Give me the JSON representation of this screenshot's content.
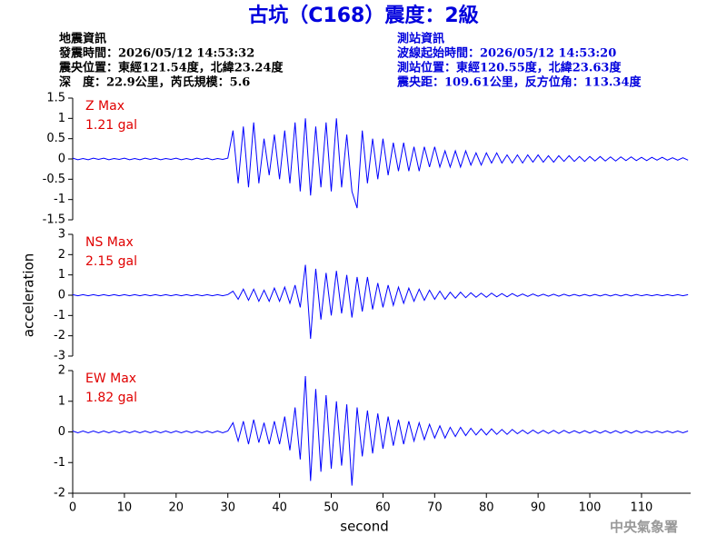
{
  "header": {
    "title": "古坑（C168）震度：2級",
    "left": [
      "地震資訊",
      "發震時間：2026/05/12 14:53:32",
      "震央位置：東經121.54度，北緯23.24度",
      "深　度：22.9公里，芮氏規模：5.6"
    ],
    "right": [
      "測站資訊",
      "波線起始時間：2026/05/12 14:53:20",
      "測站位置：東經120.55度，北緯23.63度",
      "震央距：109.61公里，反方位角：113.34度"
    ]
  },
  "chart_data": [
    {
      "type": "line",
      "annotation": "Z Max",
      "annotation_value": "1.21 gal",
      "x": [
        0,
        1,
        2,
        3,
        4,
        5,
        6,
        7,
        8,
        9,
        10,
        11,
        12,
        13,
        14,
        15,
        16,
        17,
        18,
        19,
        20,
        21,
        22,
        23,
        24,
        25,
        26,
        27,
        28,
        29,
        30,
        31,
        32,
        33,
        34,
        35,
        36,
        37,
        38,
        39,
        40,
        41,
        42,
        43,
        44,
        45,
        46,
        47,
        48,
        49,
        50,
        51,
        52,
        53,
        54,
        55,
        56,
        57,
        58,
        59,
        60,
        61,
        62,
        63,
        64,
        65,
        66,
        67,
        68,
        69,
        70,
        71,
        72,
        73,
        74,
        75,
        76,
        77,
        78,
        79,
        80,
        81,
        82,
        83,
        84,
        85,
        86,
        87,
        88,
        89,
        90,
        91,
        92,
        93,
        94,
        95,
        96,
        97,
        98,
        99,
        100,
        101,
        102,
        103,
        104,
        105,
        106,
        107,
        108,
        109,
        110,
        111,
        112,
        113,
        114,
        115,
        116,
        117,
        118,
        119
      ],
      "series": [
        {
          "color": "#0000ff",
          "values": [
            0.02,
            -0.02,
            0.01,
            -0.02,
            0.02,
            -0.01,
            0.02,
            -0.02,
            0.01,
            -0.01,
            0.02,
            -0.02,
            0.01,
            -0.02,
            0.02,
            -0.01,
            0.02,
            -0.02,
            0.01,
            -0.01,
            0.02,
            -0.02,
            0.01,
            -0.02,
            0.02,
            -0.01,
            0.02,
            -0.02,
            0.01,
            -0.01,
            0.02,
            0.7,
            -0.6,
            0.8,
            -0.7,
            0.9,
            -0.6,
            0.5,
            -0.4,
            0.6,
            -0.5,
            0.7,
            -0.6,
            0.9,
            -0.8,
            1.0,
            -0.9,
            0.8,
            -0.7,
            0.9,
            -0.8,
            1.0,
            -0.7,
            0.6,
            -0.8,
            -1.21,
            0.7,
            -0.6,
            0.5,
            -0.5,
            0.5,
            -0.4,
            0.4,
            -0.3,
            0.4,
            -0.3,
            0.3,
            -0.3,
            0.3,
            -0.2,
            0.3,
            -0.2,
            0.2,
            -0.2,
            0.2,
            -0.2,
            0.2,
            -0.15,
            0.15,
            -0.15,
            0.15,
            -0.1,
            0.15,
            -0.1,
            0.1,
            -0.1,
            0.1,
            -0.1,
            0.1,
            -0.08,
            0.1,
            -0.08,
            0.08,
            -0.08,
            0.08,
            -0.06,
            0.08,
            -0.06,
            0.06,
            -0.06,
            0.06,
            -0.05,
            0.06,
            -0.05,
            0.05,
            -0.05,
            0.05,
            -0.04,
            0.05,
            -0.04,
            0.04,
            -0.04,
            0.04,
            -0.03,
            0.04,
            -0.03,
            0.03,
            -0.03,
            0.03,
            -0.03
          ]
        }
      ],
      "xlim": [
        0,
        119.5
      ],
      "ylim": [
        -1.5,
        1.5
      ],
      "yticks": [
        -1.5,
        -1,
        -0.5,
        0,
        0.5,
        1,
        1.5
      ]
    },
    {
      "type": "line",
      "annotation": "NS Max",
      "annotation_value": "2.15 gal",
      "ylabel": "acceleration",
      "x": [
        0,
        1,
        2,
        3,
        4,
        5,
        6,
        7,
        8,
        9,
        10,
        11,
        12,
        13,
        14,
        15,
        16,
        17,
        18,
        19,
        20,
        21,
        22,
        23,
        24,
        25,
        26,
        27,
        28,
        29,
        30,
        31,
        32,
        33,
        34,
        35,
        36,
        37,
        38,
        39,
        40,
        41,
        42,
        43,
        44,
        45,
        46,
        47,
        48,
        49,
        50,
        51,
        52,
        53,
        54,
        55,
        56,
        57,
        58,
        59,
        60,
        61,
        62,
        63,
        64,
        65,
        66,
        67,
        68,
        69,
        70,
        71,
        72,
        73,
        74,
        75,
        76,
        77,
        78,
        79,
        80,
        81,
        82,
        83,
        84,
        85,
        86,
        87,
        88,
        89,
        90,
        91,
        92,
        93,
        94,
        95,
        96,
        97,
        98,
        99,
        100,
        101,
        102,
        103,
        104,
        105,
        106,
        107,
        108,
        109,
        110,
        111,
        112,
        113,
        114,
        115,
        116,
        117,
        118,
        119
      ],
      "series": [
        {
          "color": "#0000ff",
          "values": [
            0.03,
            -0.03,
            0.03,
            -0.03,
            0.03,
            -0.03,
            0.03,
            -0.03,
            0.03,
            -0.03,
            0.03,
            -0.03,
            0.03,
            -0.03,
            0.03,
            -0.03,
            0.03,
            -0.03,
            0.03,
            -0.03,
            0.03,
            -0.03,
            0.03,
            -0.03,
            0.03,
            -0.03,
            0.03,
            -0.03,
            0.03,
            -0.03,
            0.03,
            0.2,
            -0.2,
            0.3,
            -0.25,
            0.3,
            -0.3,
            0.25,
            -0.3,
            0.35,
            -0.3,
            0.4,
            -0.4,
            0.5,
            -0.6,
            1.5,
            -2.15,
            1.3,
            -1.2,
            1.1,
            -1.0,
            1.2,
            -0.9,
            1.0,
            -1.1,
            0.9,
            -0.8,
            0.9,
            -0.7,
            0.6,
            -0.6,
            0.5,
            -0.5,
            0.4,
            -0.4,
            0.35,
            -0.3,
            0.3,
            -0.25,
            0.25,
            -0.2,
            0.2,
            -0.2,
            0.15,
            -0.15,
            0.15,
            -0.12,
            0.12,
            -0.1,
            0.1,
            -0.1,
            0.1,
            -0.08,
            0.08,
            -0.08,
            0.08,
            -0.06,
            0.06,
            -0.06,
            0.06,
            -0.05,
            0.05,
            -0.05,
            0.05,
            -0.05,
            0.05,
            -0.04,
            0.04,
            -0.04,
            0.04,
            -0.04,
            0.04,
            -0.04,
            0.04,
            -0.04,
            0.04,
            -0.04,
            0.04,
            -0.04,
            0.04,
            -0.03,
            0.03,
            -0.03,
            0.03,
            -0.03,
            0.03,
            -0.03,
            0.03,
            -0.03,
            0.03
          ]
        }
      ],
      "xlim": [
        0,
        119.5
      ],
      "ylim": [
        -3,
        3
      ],
      "yticks": [
        -3,
        -2,
        -1,
        0,
        1,
        2,
        3
      ]
    },
    {
      "type": "line",
      "annotation": "EW Max",
      "annotation_value": "1.82 gal",
      "xlabel": "second",
      "x": [
        0,
        1,
        2,
        3,
        4,
        5,
        6,
        7,
        8,
        9,
        10,
        11,
        12,
        13,
        14,
        15,
        16,
        17,
        18,
        19,
        20,
        21,
        22,
        23,
        24,
        25,
        26,
        27,
        28,
        29,
        30,
        31,
        32,
        33,
        34,
        35,
        36,
        37,
        38,
        39,
        40,
        41,
        42,
        43,
        44,
        45,
        46,
        47,
        48,
        49,
        50,
        51,
        52,
        53,
        54,
        55,
        56,
        57,
        58,
        59,
        60,
        61,
        62,
        63,
        64,
        65,
        66,
        67,
        68,
        69,
        70,
        71,
        72,
        73,
        74,
        75,
        76,
        77,
        78,
        79,
        80,
        81,
        82,
        83,
        84,
        85,
        86,
        87,
        88,
        89,
        90,
        91,
        92,
        93,
        94,
        95,
        96,
        97,
        98,
        99,
        100,
        101,
        102,
        103,
        104,
        105,
        106,
        107,
        108,
        109,
        110,
        111,
        112,
        113,
        114,
        115,
        116,
        117,
        118,
        119
      ],
      "series": [
        {
          "color": "#0000ff",
          "values": [
            0.03,
            -0.03,
            0.03,
            -0.03,
            0.03,
            -0.03,
            0.03,
            -0.03,
            0.03,
            -0.03,
            0.03,
            -0.03,
            0.03,
            -0.03,
            0.03,
            -0.03,
            0.03,
            -0.03,
            0.03,
            -0.03,
            0.03,
            -0.03,
            0.03,
            -0.03,
            0.03,
            -0.03,
            0.03,
            -0.03,
            0.03,
            -0.03,
            0.03,
            0.3,
            -0.3,
            0.35,
            -0.4,
            0.4,
            -0.35,
            0.3,
            -0.4,
            0.35,
            -0.4,
            0.5,
            -0.6,
            0.8,
            -0.9,
            1.82,
            -1.6,
            1.4,
            -1.3,
            1.2,
            -1.2,
            1.0,
            -1.1,
            0.9,
            -1.75,
            0.8,
            -0.8,
            0.7,
            -0.7,
            0.6,
            -0.55,
            0.5,
            -0.45,
            0.4,
            -0.4,
            0.35,
            -0.3,
            0.3,
            -0.25,
            0.25,
            -0.2,
            0.2,
            -0.2,
            0.15,
            -0.15,
            0.15,
            -0.12,
            0.12,
            -0.1,
            0.1,
            -0.1,
            0.1,
            -0.08,
            0.08,
            -0.08,
            0.08,
            -0.06,
            0.06,
            -0.06,
            0.06,
            -0.05,
            0.05,
            -0.05,
            0.05,
            -0.05,
            0.05,
            -0.04,
            0.04,
            -0.04,
            0.04,
            -0.04,
            0.04,
            -0.04,
            0.04,
            -0.04,
            0.04,
            -0.04,
            0.04,
            -0.04,
            0.04,
            -0.03,
            0.03,
            -0.03,
            0.03,
            -0.03,
            0.03,
            -0.03,
            0.03,
            -0.03,
            0.03
          ]
        }
      ],
      "xlim": [
        0,
        119.5
      ],
      "ylim": [
        -2,
        2
      ],
      "yticks": [
        -2,
        -1,
        0,
        1,
        2
      ],
      "xticks": [
        0,
        10,
        20,
        30,
        40,
        50,
        60,
        70,
        80,
        90,
        100,
        110
      ]
    }
  ],
  "footer": "中央氣象署"
}
